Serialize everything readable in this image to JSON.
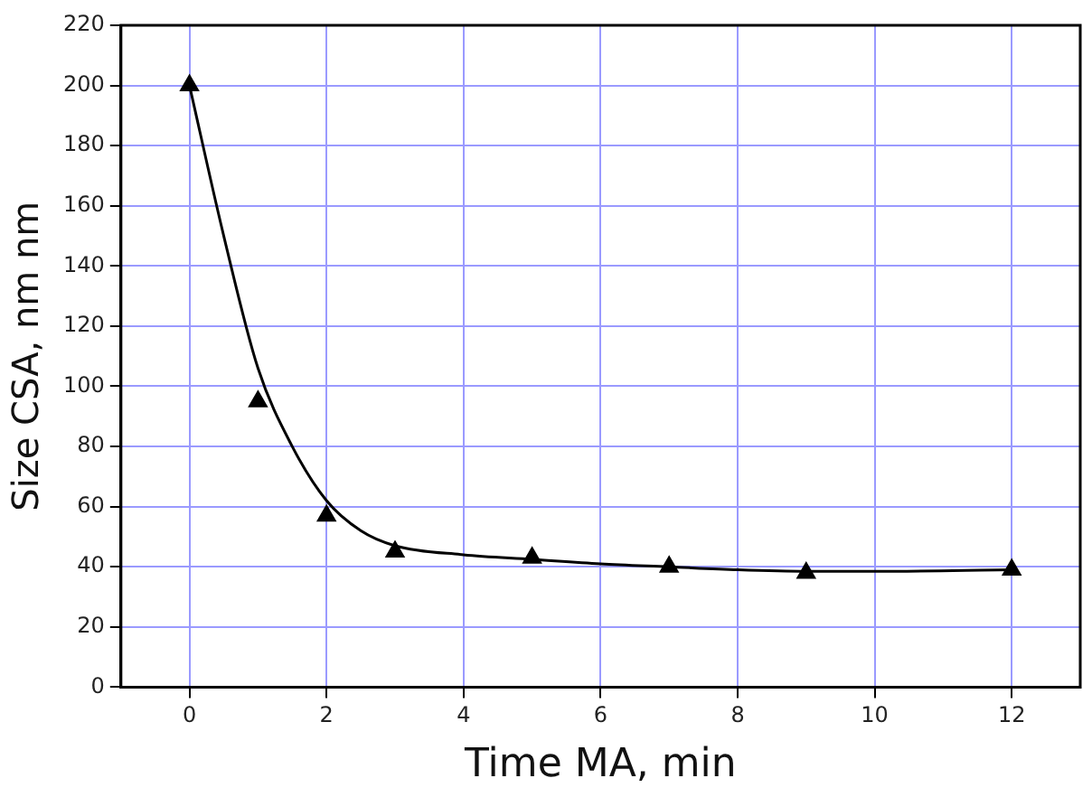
{
  "chart_data": {
    "type": "scatter",
    "xlabel": "Time MA, min",
    "ylabel": "Size CSA, nm nm",
    "xlim": [
      -1,
      13
    ],
    "xticks": [
      0,
      2,
      4,
      6,
      8,
      10,
      12
    ],
    "ylim": [
      0,
      220
    ],
    "yticks": [
      0,
      20,
      40,
      60,
      80,
      100,
      120,
      140,
      160,
      180,
      200,
      220
    ],
    "grid": true,
    "legend": false,
    "marker": "triangle",
    "series": [
      {
        "color": "#000000",
        "x": [
          0,
          1,
          2,
          3,
          5,
          7,
          9,
          12
        ],
        "values": [
          200,
          95,
          57,
          45,
          43,
          40,
          38,
          39
        ]
      },
      {
        "type": "line",
        "color": "#000000",
        "marker": "none",
        "x": [
          0,
          0.5,
          1,
          1.5,
          2,
          2.5,
          3,
          4,
          5,
          6,
          7,
          8,
          9,
          10,
          12
        ],
        "values": [
          200,
          150,
          106,
          80,
          62,
          52,
          47,
          44,
          42.5,
          41,
          40,
          39,
          38.5,
          38.5,
          39
        ]
      }
    ]
  }
}
